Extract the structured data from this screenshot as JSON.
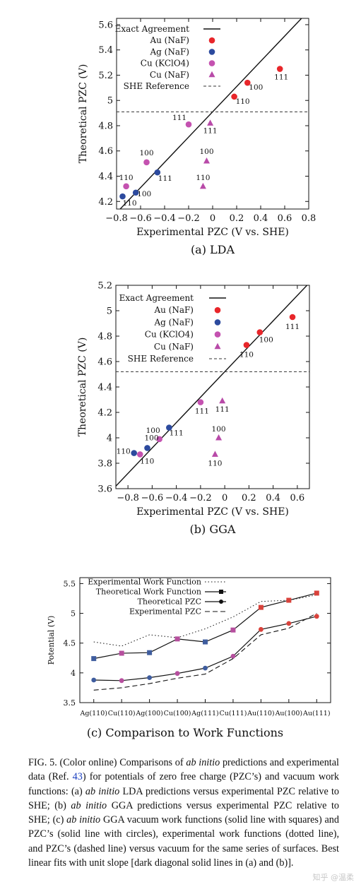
{
  "charts_meta": {
    "sublabels": [
      "(a) LDA",
      "(b) GGA",
      "(c) Comparison to Work Functions"
    ]
  },
  "chart_data": [
    {
      "type": "scatter",
      "title": "",
      "xlabel": "Experimental PZC (V vs. SHE)",
      "ylabel": "Theoretical PZC (V)",
      "sublabel": "(a) LDA",
      "xlim": [
        -0.8,
        0.8
      ],
      "ylim": [
        4.14,
        5.65
      ],
      "xticks": [
        -0.8,
        -0.6,
        -0.4,
        -0.2,
        0,
        0.2,
        0.4,
        0.6,
        0.8
      ],
      "xticklabels": [
        "−0.8",
        "−0.6",
        "−0.4",
        "−0.2",
        "0",
        "0.2",
        "0.4",
        "0.6",
        "0.8"
      ],
      "yticks": [
        4.2,
        4.4,
        4.6,
        4.8,
        5,
        5.2,
        5.4,
        5.6
      ],
      "yticklabels": [
        "4.2",
        "4.4",
        "4.6",
        "4.8",
        "5",
        "5.2",
        "5.4",
        "5.6"
      ],
      "lines": [
        {
          "name": "Exact Agreement",
          "style": "solid",
          "slope": 1,
          "intercept": 4.91
        },
        {
          "name": "SHE Reference",
          "style": "dashed",
          "y": 4.91
        }
      ],
      "series": [
        {
          "name": "Au (NaF)",
          "marker": "circle",
          "color": "#e8262a",
          "points": [
            {
              "x": 0.18,
              "y": 5.03,
              "label": "110"
            },
            {
              "x": 0.29,
              "y": 5.14,
              "label": "100"
            },
            {
              "x": 0.56,
              "y": 5.25,
              "label": "111"
            }
          ]
        },
        {
          "name": "Ag (NaF)",
          "marker": "circle",
          "color": "#2c4a9e",
          "points": [
            {
              "x": -0.75,
              "y": 4.24,
              "label": "110"
            },
            {
              "x": -0.64,
              "y": 4.27,
              "label": "100"
            },
            {
              "x": -0.46,
              "y": 4.43,
              "label": "111"
            }
          ]
        },
        {
          "name": "Cu (KClO4)",
          "marker": "circle",
          "color": "#c452b0",
          "points": [
            {
              "x": -0.72,
              "y": 4.32,
              "label": "110"
            },
            {
              "x": -0.55,
              "y": 4.51,
              "label": "100"
            },
            {
              "x": -0.2,
              "y": 4.81,
              "label": "111"
            }
          ]
        },
        {
          "name": "Cu (NaF)",
          "marker": "triangle",
          "color": "#b84aa8",
          "points": [
            {
              "x": -0.08,
              "y": 4.32,
              "label": "110"
            },
            {
              "x": -0.05,
              "y": 4.52,
              "label": "100"
            },
            {
              "x": -0.02,
              "y": 4.82,
              "label": "111"
            }
          ]
        }
      ],
      "legend": "top-left"
    },
    {
      "type": "scatter",
      "title": "",
      "xlabel": "Experimental PZC (V vs. SHE)",
      "ylabel": "Theoretical PZC (V)",
      "sublabel": "(b) GGA",
      "xlim": [
        -0.9,
        0.7
      ],
      "ylim": [
        3.6,
        5.2
      ],
      "xticks": [
        -0.8,
        -0.6,
        -0.4,
        -0.2,
        0,
        0.2,
        0.4,
        0.6
      ],
      "xticklabels": [
        "−0.8",
        "−0.6",
        "−0.4",
        "−0.2",
        "0",
        "0.2",
        "0.4",
        "0.6"
      ],
      "yticks": [
        3.6,
        3.8,
        4,
        4.2,
        4.4,
        4.6,
        4.8,
        5,
        5.2
      ],
      "yticklabels": [
        "3.6",
        "3.8",
        "4",
        "4.2",
        "4.4",
        "4.6",
        "4.8",
        "5",
        "5.2"
      ],
      "lines": [
        {
          "name": "Exact Agreement",
          "style": "solid",
          "slope": 1,
          "intercept": 4.52
        },
        {
          "name": "SHE Reference",
          "style": "dashed",
          "y": 4.52
        }
      ],
      "series": [
        {
          "name": "Au (NaF)",
          "marker": "circle",
          "color": "#e8262a",
          "points": [
            {
              "x": 0.18,
              "y": 4.73,
              "label": "110"
            },
            {
              "x": 0.29,
              "y": 4.83,
              "label": "100"
            },
            {
              "x": 0.56,
              "y": 4.95,
              "label": "111"
            }
          ]
        },
        {
          "name": "Ag (NaF)",
          "marker": "circle",
          "color": "#2c4a9e",
          "points": [
            {
              "x": -0.75,
              "y": 3.88,
              "label": "110"
            },
            {
              "x": -0.64,
              "y": 3.92,
              "label": "100"
            },
            {
              "x": -0.46,
              "y": 4.08,
              "label": ""
            }
          ]
        },
        {
          "name": "Cu (KClO4)",
          "marker": "circle",
          "color": "#c452b0",
          "points": [
            {
              "x": -0.7,
              "y": 3.87,
              "label": "110"
            },
            {
              "x": -0.54,
              "y": 3.99,
              "label": "100"
            },
            {
              "x": -0.2,
              "y": 4.28,
              "label": "111"
            }
          ]
        },
        {
          "name": "Cu (NaF)",
          "marker": "triangle",
          "color": "#b84aa8",
          "points": [
            {
              "x": -0.08,
              "y": 3.87,
              "label": "110"
            },
            {
              "x": -0.05,
              "y": 4.0,
              "label": "100"
            },
            {
              "x": -0.02,
              "y": 4.29,
              "label": "111"
            }
          ]
        }
      ],
      "annotations": [
        {
          "text": "111",
          "x": -0.4,
          "y": 4.02
        }
      ],
      "legend": "top-left"
    },
    {
      "type": "line",
      "title": "",
      "xlabel": "",
      "ylabel": "Potential (V)",
      "sublabel": "(c) Comparison to Work Functions",
      "categories": [
        "Ag(110)",
        "Cu(110)",
        "Ag(100)",
        "Cu(100)",
        "Ag(111)",
        "Cu(111)",
        "Au(110)",
        "Au(100)",
        "Au(111)"
      ],
      "ylim": [
        3.5,
        5.6
      ],
      "yticks": [
        3.5,
        4,
        4.5,
        5,
        5.5
      ],
      "yticklabels": [
        "3.5",
        "4",
        "4.5",
        "5",
        "5.5"
      ],
      "series": [
        {
          "name": "Experimental Work Function",
          "style": "dotted",
          "values": [
            4.52,
            4.45,
            4.64,
            4.59,
            4.74,
            4.94,
            5.2,
            5.22,
            5.31
          ]
        },
        {
          "name": "Theoretical Work Function",
          "style": "solid-square",
          "values": [
            4.24,
            4.33,
            4.34,
            4.57,
            4.52,
            4.72,
            5.1,
            5.22,
            5.34
          ]
        },
        {
          "name": "Theoretical PZC",
          "style": "solid-circle",
          "values": [
            3.88,
            3.87,
            3.92,
            3.99,
            4.08,
            4.28,
            4.73,
            4.83,
            4.95
          ]
        },
        {
          "name": "Experimental PZC",
          "style": "dashed",
          "values": [
            3.71,
            3.75,
            3.82,
            3.91,
            3.98,
            4.24,
            4.64,
            4.75,
            5.0
          ]
        }
      ],
      "legend": "top-left"
    }
  ],
  "caption": {
    "label": "FIG. 5.",
    "text_1": "(Color online) Comparisons of ",
    "ab_initio": "ab initio",
    "text_2": " predictions and experimental data (Ref. ",
    "ref": "43",
    "text_3": ") for potentials of zero free charge (PZC’s) and vacuum work functions: (a) ",
    "text_4": " LDA predictions versus experimental PZC relative to SHE; (b) ",
    "text_5": " GGA predictions versus experimental PZC relative to SHE; (c) ",
    "text_6": " GGA vacuum work functions (solid line with squares) and PZC’s (solid line with circles), experimental work functions (dotted line), and PZC’s (dashed line) versus vacuum for the same series of surfaces. Best linear fits with unit slope [dark diagonal solid lines in (a) and (b)]."
  },
  "watermark": "知乎 @温柔"
}
